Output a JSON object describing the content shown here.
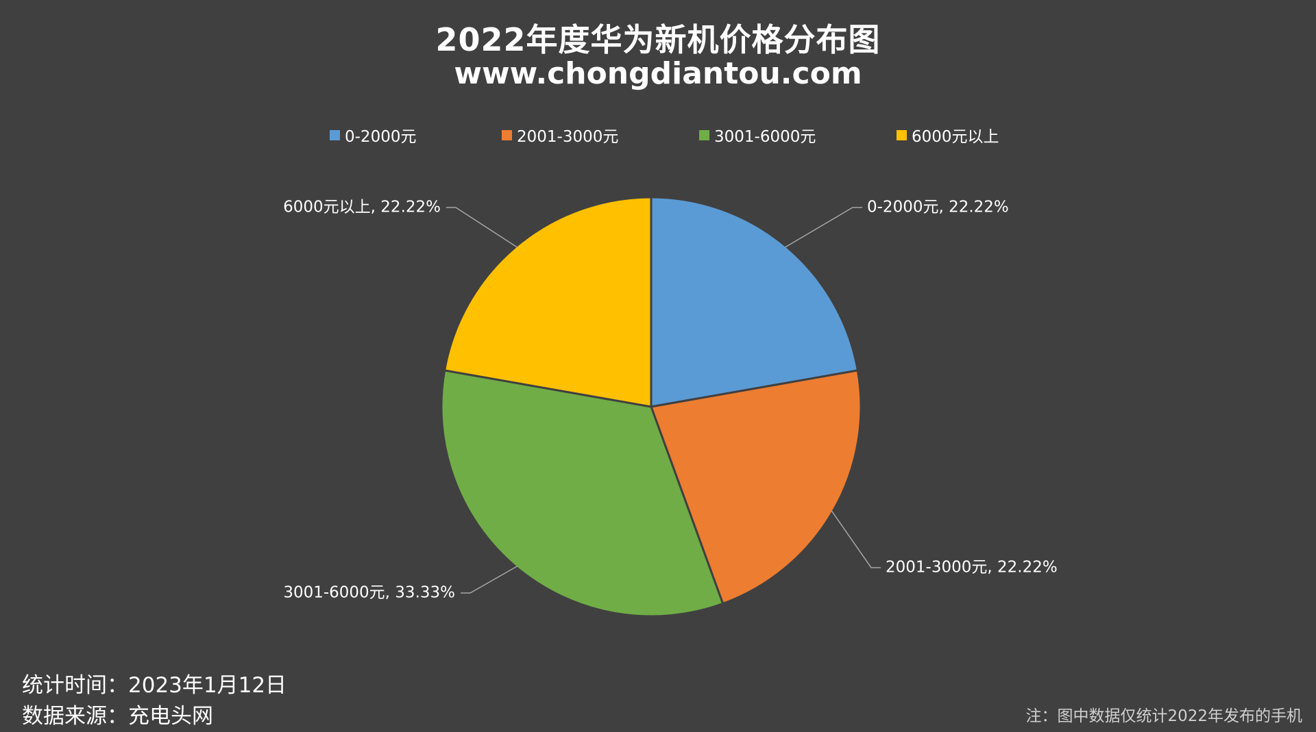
{
  "chart_data": {
    "type": "pie",
    "title": "2022年度华为新机价格分布图",
    "subtitle": "www.chongdiantou.com",
    "legend_position": "top",
    "categories": [
      "0-2000元",
      "2001-3000元",
      "3001-6000元",
      "6000元以上"
    ],
    "values": [
      22.22,
      22.22,
      33.33,
      22.22
    ],
    "unit": "%",
    "data_labels": [
      "0-2000元, 22.22%",
      "2001-3000元, 22.22%",
      "3001-6000元, 33.33%",
      "6000元以上, 22.22%"
    ],
    "colors": [
      "#5B9BD5",
      "#ED7D31",
      "#70AD47",
      "#FFC000"
    ]
  },
  "footer": {
    "date_line": "统计时间：2023年1月12日",
    "source_line": "数据来源：充电头网",
    "note": "注：图中数据仅统计2022年发布的手机"
  }
}
